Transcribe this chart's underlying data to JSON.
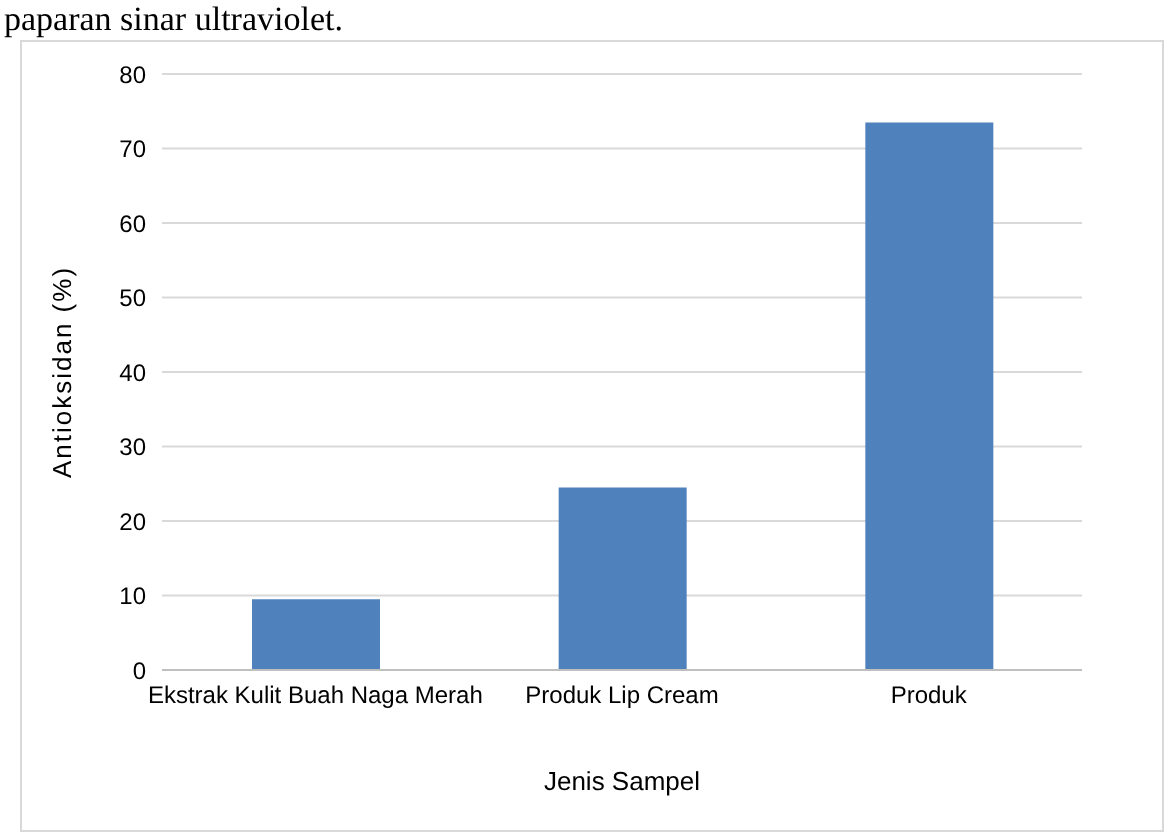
{
  "chart_data": {
    "type": "bar",
    "xlabel": "Jenis Sampel",
    "ylabel": "Antioksidan (%)",
    "categories": [
      "Ekstrak Kulit Buah Naga Merah",
      "Produk Lip Cream",
      "Produk"
    ],
    "values": [
      9.5,
      24.5,
      73.5
    ],
    "color": "#4f81bd",
    "ylim": [
      0,
      80
    ],
    "yticks": [
      0,
      10,
      20,
      30,
      40,
      50,
      60,
      70,
      80
    ],
    "grid": "y",
    "annotations": [
      "paparan sinar ultraviolet."
    ]
  }
}
